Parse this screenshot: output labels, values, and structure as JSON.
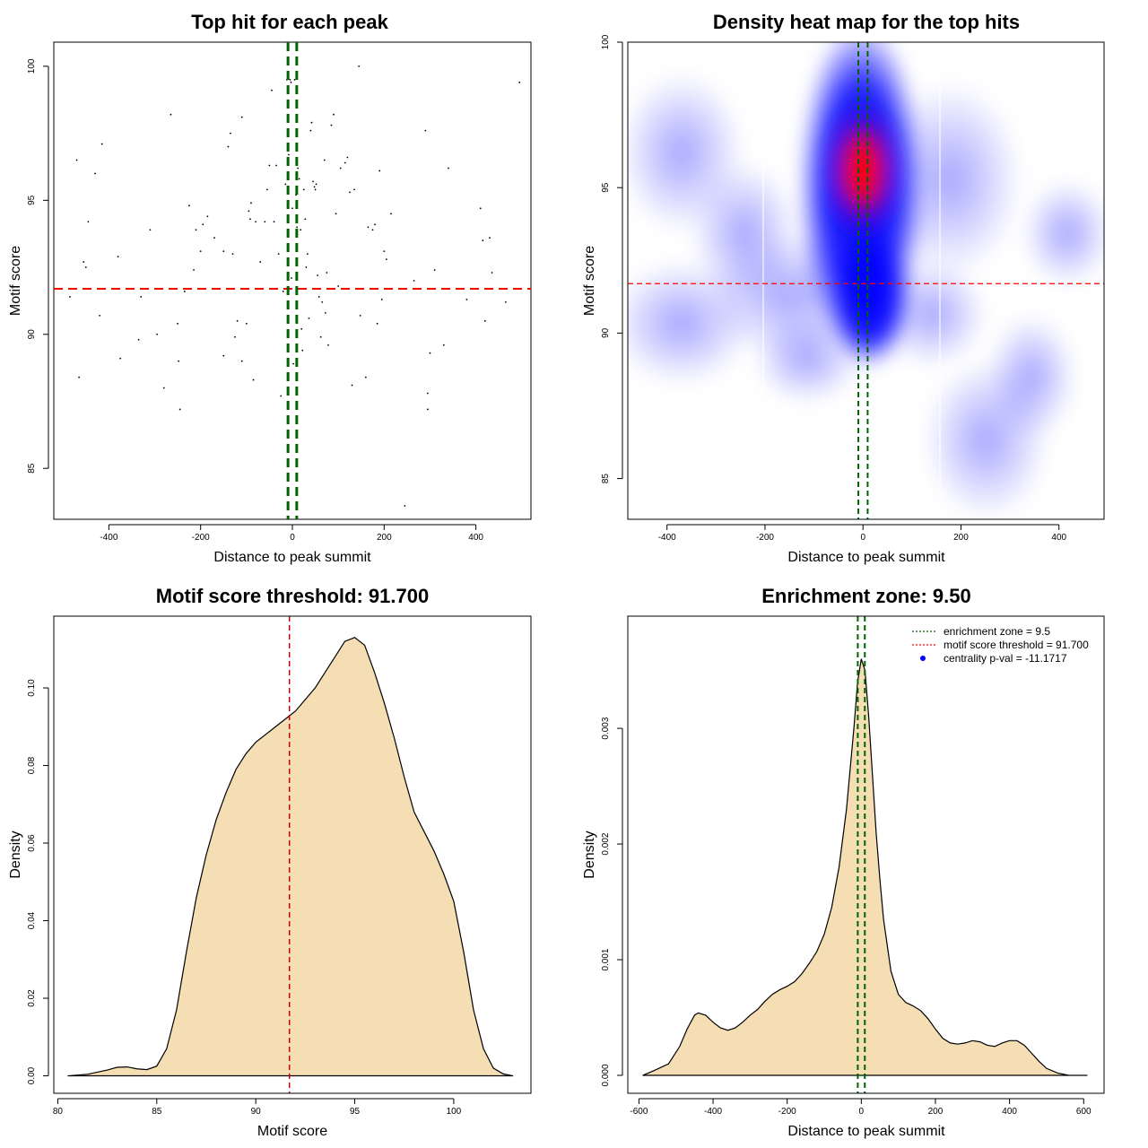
{
  "chart_data": [
    {
      "type": "scatter",
      "title": "Top hit for each peak",
      "xlabel": "Distance to peak summit",
      "ylabel": "Motif score",
      "xlim": [
        -520,
        520
      ],
      "ylim": [
        83.1,
        100.9
      ],
      "xticks": [
        -400,
        -200,
        0,
        200,
        400
      ],
      "yticks": [
        85,
        90,
        95,
        100
      ],
      "vlines": [
        -9.5,
        9.5
      ],
      "hline": 91.7,
      "points": [
        [
          -470,
          96.5
        ],
        [
          -465,
          88.4
        ],
        [
          -455,
          92.7
        ],
        [
          -450,
          92.5
        ],
        [
          -445,
          94.2
        ],
        [
          -430,
          96.0
        ],
        [
          -420,
          90.7
        ],
        [
          -415,
          97.1
        ],
        [
          -380,
          92.9
        ],
        [
          -375,
          89.1
        ],
        [
          -330,
          91.4
        ],
        [
          -335,
          89.8
        ],
        [
          -310,
          93.9
        ],
        [
          -295,
          90.0
        ],
        [
          -280,
          88.0
        ],
        [
          -265,
          98.2
        ],
        [
          -250,
          90.4
        ],
        [
          -248,
          89.0
        ],
        [
          -245,
          87.2
        ],
        [
          -235,
          91.6
        ],
        [
          -225,
          94.8
        ],
        [
          -215,
          92.4
        ],
        [
          -210,
          93.9
        ],
        [
          -200,
          93.1
        ],
        [
          -195,
          94.1
        ],
        [
          -185,
          94.4
        ],
        [
          -170,
          93.6
        ],
        [
          -150,
          93.1
        ],
        [
          -150,
          89.2
        ],
        [
          -140,
          97.0
        ],
        [
          -135,
          97.5
        ],
        [
          -130,
          93.0
        ],
        [
          -125,
          89.9
        ],
        [
          -120,
          90.5
        ],
        [
          -110,
          89.0
        ],
        [
          -110,
          98.1
        ],
        [
          -100,
          90.4
        ],
        [
          -95,
          94.6
        ],
        [
          -92,
          94.3
        ],
        [
          -90,
          94.9
        ],
        [
          -85,
          88.3
        ],
        [
          -80,
          94.2
        ],
        [
          -70,
          92.7
        ],
        [
          -60,
          94.2
        ],
        [
          -55,
          95.4
        ],
        [
          -50,
          96.3
        ],
        [
          -45,
          99.1
        ],
        [
          -40,
          94.2
        ],
        [
          -35,
          96.3
        ],
        [
          -30,
          93.0
        ],
        [
          -25,
          87.7
        ],
        [
          -20,
          91.6
        ],
        [
          -15,
          95.6
        ],
        [
          -12,
          99.5
        ],
        [
          -8,
          96.7
        ],
        [
          -5,
          99.5
        ],
        [
          -3,
          99.4
        ],
        [
          -2,
          92.1
        ],
        [
          0,
          94.7
        ],
        [
          2,
          88.9
        ],
        [
          5,
          99.5
        ],
        [
          8,
          95.2
        ],
        [
          10,
          94.0
        ],
        [
          12,
          96.2
        ],
        [
          15,
          95.8
        ],
        [
          18,
          93.9
        ],
        [
          20,
          90.2
        ],
        [
          22,
          89.4
        ],
        [
          25,
          95.4
        ],
        [
          28,
          94.3
        ],
        [
          30,
          92.5
        ],
        [
          33,
          93.0
        ],
        [
          36,
          90.6
        ],
        [
          40,
          97.6
        ],
        [
          42,
          97.9
        ],
        [
          45,
          95.7
        ],
        [
          48,
          95.5
        ],
        [
          50,
          95.4
        ],
        [
          52,
          95.6
        ],
        [
          55,
          92.2
        ],
        [
          58,
          91.4
        ],
        [
          62,
          89.9
        ],
        [
          65,
          91.2
        ],
        [
          70,
          96.5
        ],
        [
          72,
          90.8
        ],
        [
          75,
          92.3
        ],
        [
          78,
          89.6
        ],
        [
          85,
          97.8
        ],
        [
          90,
          98.2
        ],
        [
          95,
          94.5
        ],
        [
          100,
          91.8
        ],
        [
          105,
          96.2
        ],
        [
          115,
          96.4
        ],
        [
          120,
          96.6
        ],
        [
          125,
          95.3
        ],
        [
          130,
          88.1
        ],
        [
          135,
          95.4
        ],
        [
          145,
          100.0
        ],
        [
          148,
          90.7
        ],
        [
          160,
          88.4
        ],
        [
          165,
          94.0
        ],
        [
          175,
          93.9
        ],
        [
          180,
          94.1
        ],
        [
          185,
          90.4
        ],
        [
          190,
          96.1
        ],
        [
          195,
          91.3
        ],
        [
          200,
          93.1
        ],
        [
          205,
          92.8
        ],
        [
          215,
          94.5
        ],
        [
          245,
          83.6
        ],
        [
          265,
          92.0
        ],
        [
          290,
          97.6
        ],
        [
          295,
          87.8
        ],
        [
          295,
          87.2
        ],
        [
          300,
          89.3
        ],
        [
          310,
          92.4
        ],
        [
          330,
          89.6
        ],
        [
          340,
          96.2
        ],
        [
          380,
          91.3
        ],
        [
          410,
          94.7
        ],
        [
          415,
          93.5
        ],
        [
          420,
          90.5
        ],
        [
          430,
          93.6
        ],
        [
          435,
          92.3
        ],
        [
          465,
          91.2
        ],
        [
          495,
          99.4
        ],
        [
          -485,
          91.4
        ]
      ]
    },
    {
      "type": "heatmap",
      "title": "Density heat map for the top hits",
      "xlabel": "Distance to peak summit",
      "ylabel": "Motif score",
      "xlim": [
        -480,
        492
      ],
      "ylim": [
        83.6,
        100
      ],
      "xticks": [
        -400,
        -200,
        0,
        200,
        400
      ],
      "yticks": [
        85,
        90,
        95,
        100
      ],
      "vlines": [
        -9.5,
        9.5
      ],
      "hline": 91.7,
      "colors": [
        "#ffffff",
        "#0000ff",
        "#ff0000"
      ]
    },
    {
      "type": "area",
      "title": "Motif score threshold: 91.700",
      "xlabel": "Motif score",
      "ylabel": "Density",
      "xlim": [
        79.8,
        103.9
      ],
      "ylim": [
        -0.0045,
        0.1185
      ],
      "xticks": [
        80,
        85,
        90,
        95,
        100
      ],
      "yticks": [
        "0.00",
        "0.02",
        "0.04",
        "0.06",
        "0.08",
        "0.10"
      ],
      "vline": 91.7,
      "fill": "#f5deb3",
      "x": [
        80.5,
        81.5,
        82.5,
        83,
        83.5,
        84,
        84.5,
        85,
        85.5,
        86,
        86.5,
        87,
        87.5,
        88,
        88.5,
        89,
        89.5,
        90,
        90.5,
        91,
        91.5,
        92,
        92.5,
        93,
        93.5,
        94,
        94.5,
        95,
        95.5,
        96,
        96.5,
        97,
        97.5,
        98,
        98.5,
        99,
        99.5,
        100,
        100.5,
        101,
        101.5,
        102,
        102.5,
        103
      ],
      "y": [
        0.0,
        0.0004,
        0.0015,
        0.0022,
        0.0023,
        0.0018,
        0.0016,
        0.0025,
        0.007,
        0.017,
        0.032,
        0.046,
        0.057,
        0.066,
        0.073,
        0.079,
        0.083,
        0.086,
        0.088,
        0.09,
        0.092,
        0.094,
        0.097,
        0.1,
        0.104,
        0.108,
        0.112,
        0.113,
        0.111,
        0.104,
        0.096,
        0.087,
        0.077,
        0.068,
        0.063,
        0.058,
        0.052,
        0.045,
        0.032,
        0.017,
        0.007,
        0.002,
        0.0005,
        0.0
      ]
    },
    {
      "type": "area",
      "title": "Enrichment zone: 9.50",
      "xlabel": "Distance to peak summit",
      "ylabel": "Density",
      "xlim": [
        -630,
        655
      ],
      "ylim": [
        -0.000155,
        0.00397
      ],
      "xticks": [
        -600,
        -400,
        -200,
        0,
        200,
        400,
        600
      ],
      "yticks": [
        "0.000",
        "0.001",
        "0.002",
        "0.003"
      ],
      "vlines": [
        -9.5,
        9.5
      ],
      "fill": "#f5deb3",
      "legend": [
        {
          "label": "enrichment zone = 9.5",
          "color": "#006400",
          "style": "dotted"
        },
        {
          "label": "motif score threshold = 91.700",
          "color": "#ff0000",
          "style": "dotted"
        },
        {
          "label": "centrality p-val = -11.1717",
          "color": "#0000ff",
          "style": "dot"
        }
      ],
      "x": [
        -590,
        -560,
        -520,
        -490,
        -470,
        -450,
        -440,
        -420,
        -400,
        -380,
        -360,
        -340,
        -320,
        -300,
        -280,
        -260,
        -240,
        -220,
        -200,
        -180,
        -160,
        -140,
        -120,
        -100,
        -80,
        -60,
        -40,
        -20,
        -10,
        0,
        10,
        20,
        30,
        40,
        50,
        60,
        80,
        100,
        120,
        140,
        160,
        180,
        200,
        220,
        240,
        260,
        280,
        300,
        320,
        340,
        360,
        380,
        400,
        420,
        440,
        460,
        480,
        500,
        530,
        560,
        610
      ],
      "y": [
        0.0,
        4e-05,
        0.0001,
        0.00025,
        0.0004,
        0.00052,
        0.00054,
        0.00052,
        0.00046,
        0.00041,
        0.00039,
        0.00041,
        0.00046,
        0.00052,
        0.00057,
        0.00064,
        0.0007,
        0.00074,
        0.00077,
        0.00081,
        0.00088,
        0.00097,
        0.00107,
        0.00122,
        0.00145,
        0.0018,
        0.0023,
        0.003,
        0.0034,
        0.0036,
        0.0035,
        0.0031,
        0.0026,
        0.0021,
        0.0017,
        0.00135,
        0.0009,
        0.0007,
        0.00063,
        0.0006,
        0.00056,
        0.00049,
        0.0004,
        0.00032,
        0.00028,
        0.00027,
        0.00028,
        0.0003,
        0.00029,
        0.00026,
        0.00025,
        0.00028,
        0.0003,
        0.0003,
        0.00026,
        0.00019,
        0.00012,
        6e-05,
        2e-05,
        0.0,
        0.0
      ]
    }
  ]
}
